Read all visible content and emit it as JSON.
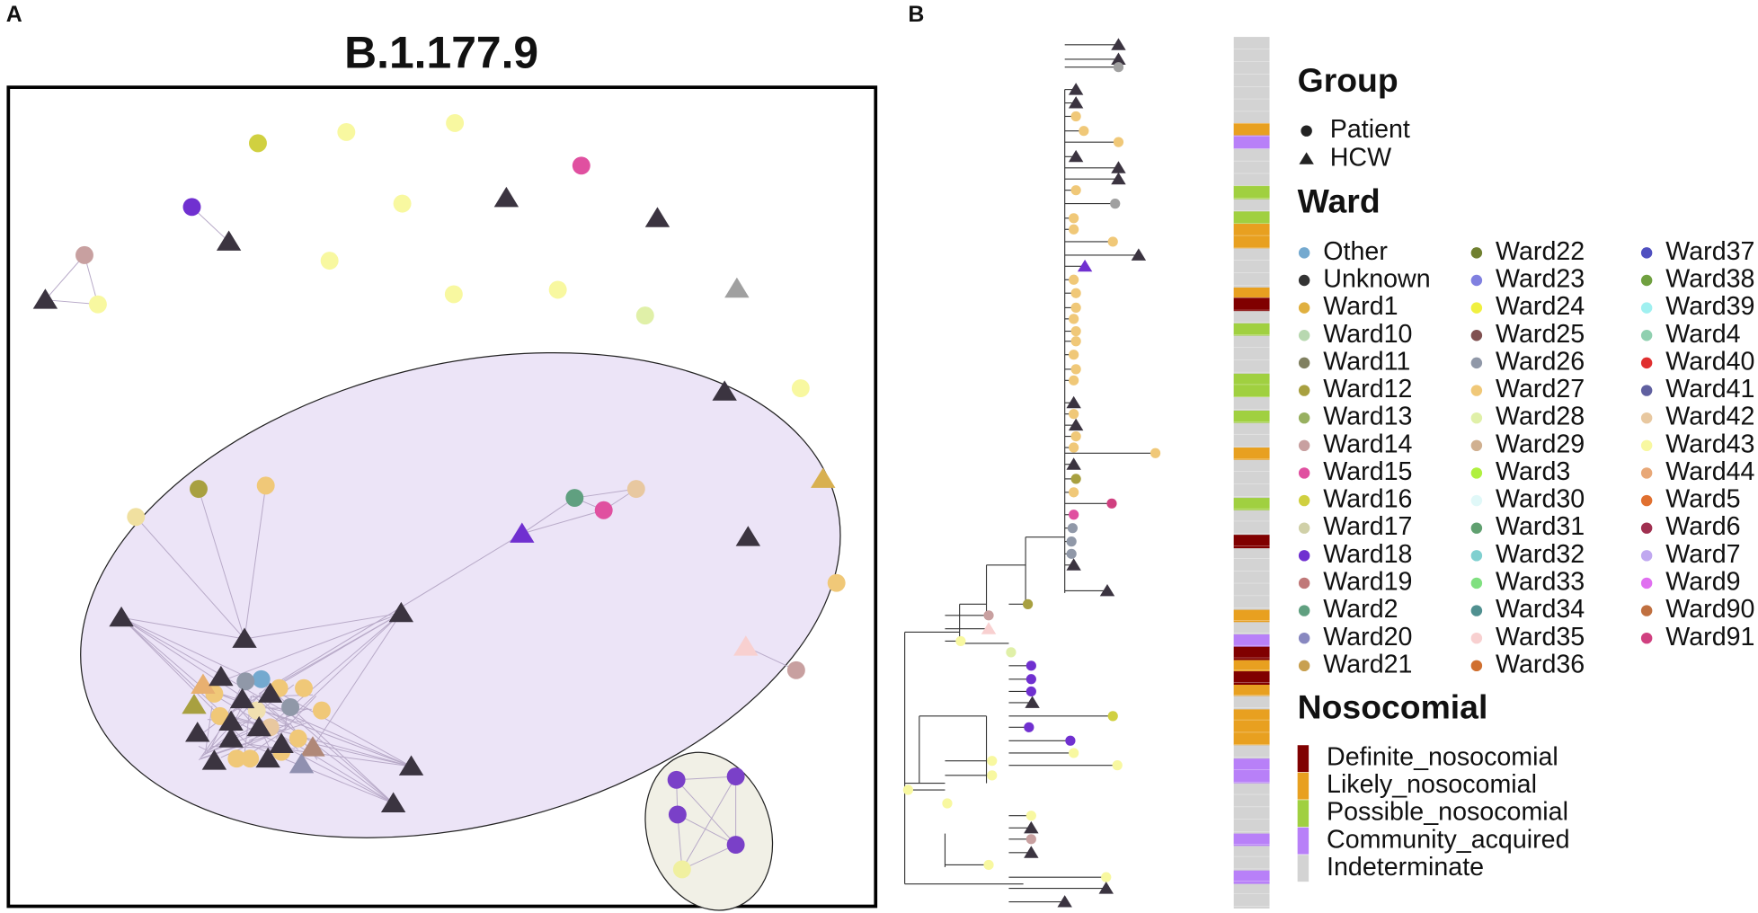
{
  "panels": {
    "a": "A",
    "b": "B"
  },
  "network": {
    "title": "B.1.177.9"
  },
  "legend": {
    "group": {
      "title": "Group",
      "items": [
        "Patient",
        "HCW"
      ]
    },
    "ward": {
      "title": "Ward",
      "items": [
        {
          "name": "Other",
          "color": "#74a9cf"
        },
        {
          "name": "Unknown",
          "color": "#333333"
        },
        {
          "name": "Ward1",
          "color": "#e0b040"
        },
        {
          "name": "Ward10",
          "color": "#b8d8b0"
        },
        {
          "name": "Ward11",
          "color": "#808060"
        },
        {
          "name": "Ward12",
          "color": "#a8a040"
        },
        {
          "name": "Ward13",
          "color": "#98b060"
        },
        {
          "name": "Ward14",
          "color": "#c8a0a0"
        },
        {
          "name": "Ward15",
          "color": "#e050a0"
        },
        {
          "name": "Ward16",
          "color": "#d0d040"
        },
        {
          "name": "Ward17",
          "color": "#d0d0a8"
        },
        {
          "name": "Ward18",
          "color": "#7030d0"
        },
        {
          "name": "Ward19",
          "color": "#c07878"
        },
        {
          "name": "Ward2",
          "color": "#60a080"
        },
        {
          "name": "Ward20",
          "color": "#8888c0"
        },
        {
          "name": "Ward21",
          "color": "#c8a050"
        },
        {
          "name": "Ward22",
          "color": "#708030"
        },
        {
          "name": "Ward23",
          "color": "#8080e0"
        },
        {
          "name": "Ward24",
          "color": "#f0f040"
        },
        {
          "name": "Ward25",
          "color": "#805050"
        },
        {
          "name": "Ward26",
          "color": "#9098a8"
        },
        {
          "name": "Ward27",
          "color": "#f0c878"
        },
        {
          "name": "Ward28",
          "color": "#e0f0a8"
        },
        {
          "name": "Ward29",
          "color": "#d0b090"
        },
        {
          "name": "Ward3",
          "color": "#b0f040"
        },
        {
          "name": "Ward30",
          "color": "#e0f8f8"
        },
        {
          "name": "Ward31",
          "color": "#60a070"
        },
        {
          "name": "Ward32",
          "color": "#80d0d0"
        },
        {
          "name": "Ward33",
          "color": "#80e080"
        },
        {
          "name": "Ward34",
          "color": "#509090"
        },
        {
          "name": "Ward35",
          "color": "#f8d0d0"
        },
        {
          "name": "Ward36",
          "color": "#d07030"
        },
        {
          "name": "Ward37",
          "color": "#5050c0"
        },
        {
          "name": "Ward38",
          "color": "#70a040"
        },
        {
          "name": "Ward39",
          "color": "#a0f0f0"
        },
        {
          "name": "Ward4",
          "color": "#90d0b0"
        },
        {
          "name": "Ward40",
          "color": "#e03030"
        },
        {
          "name": "Ward41",
          "color": "#6060a0"
        },
        {
          "name": "Ward42",
          "color": "#e8c8a0"
        },
        {
          "name": "Ward43",
          "color": "#f8f8a0"
        },
        {
          "name": "Ward44",
          "color": "#e8a878"
        },
        {
          "name": "Ward5",
          "color": "#e07030"
        },
        {
          "name": "Ward6",
          "color": "#a03050"
        },
        {
          "name": "Ward7",
          "color": "#c0a8f0"
        },
        {
          "name": "Ward9",
          "color": "#e070f0"
        },
        {
          "name": "Ward90",
          "color": "#c07040"
        },
        {
          "name": "Ward91",
          "color": "#d04080"
        }
      ]
    },
    "nosocomial": {
      "title": "Nosocomial",
      "items": [
        {
          "name": "Definite_nosocomial",
          "color": "#800000"
        },
        {
          "name": "Likely_nosocomial",
          "color": "#e8a020"
        },
        {
          "name": "Possible_nosocomial",
          "color": "#a0d040"
        },
        {
          "name": "Community_acquired",
          "color": "#b880f8"
        },
        {
          "name": "Indeterminate",
          "color": "#d3d3d3"
        }
      ]
    }
  }
}
